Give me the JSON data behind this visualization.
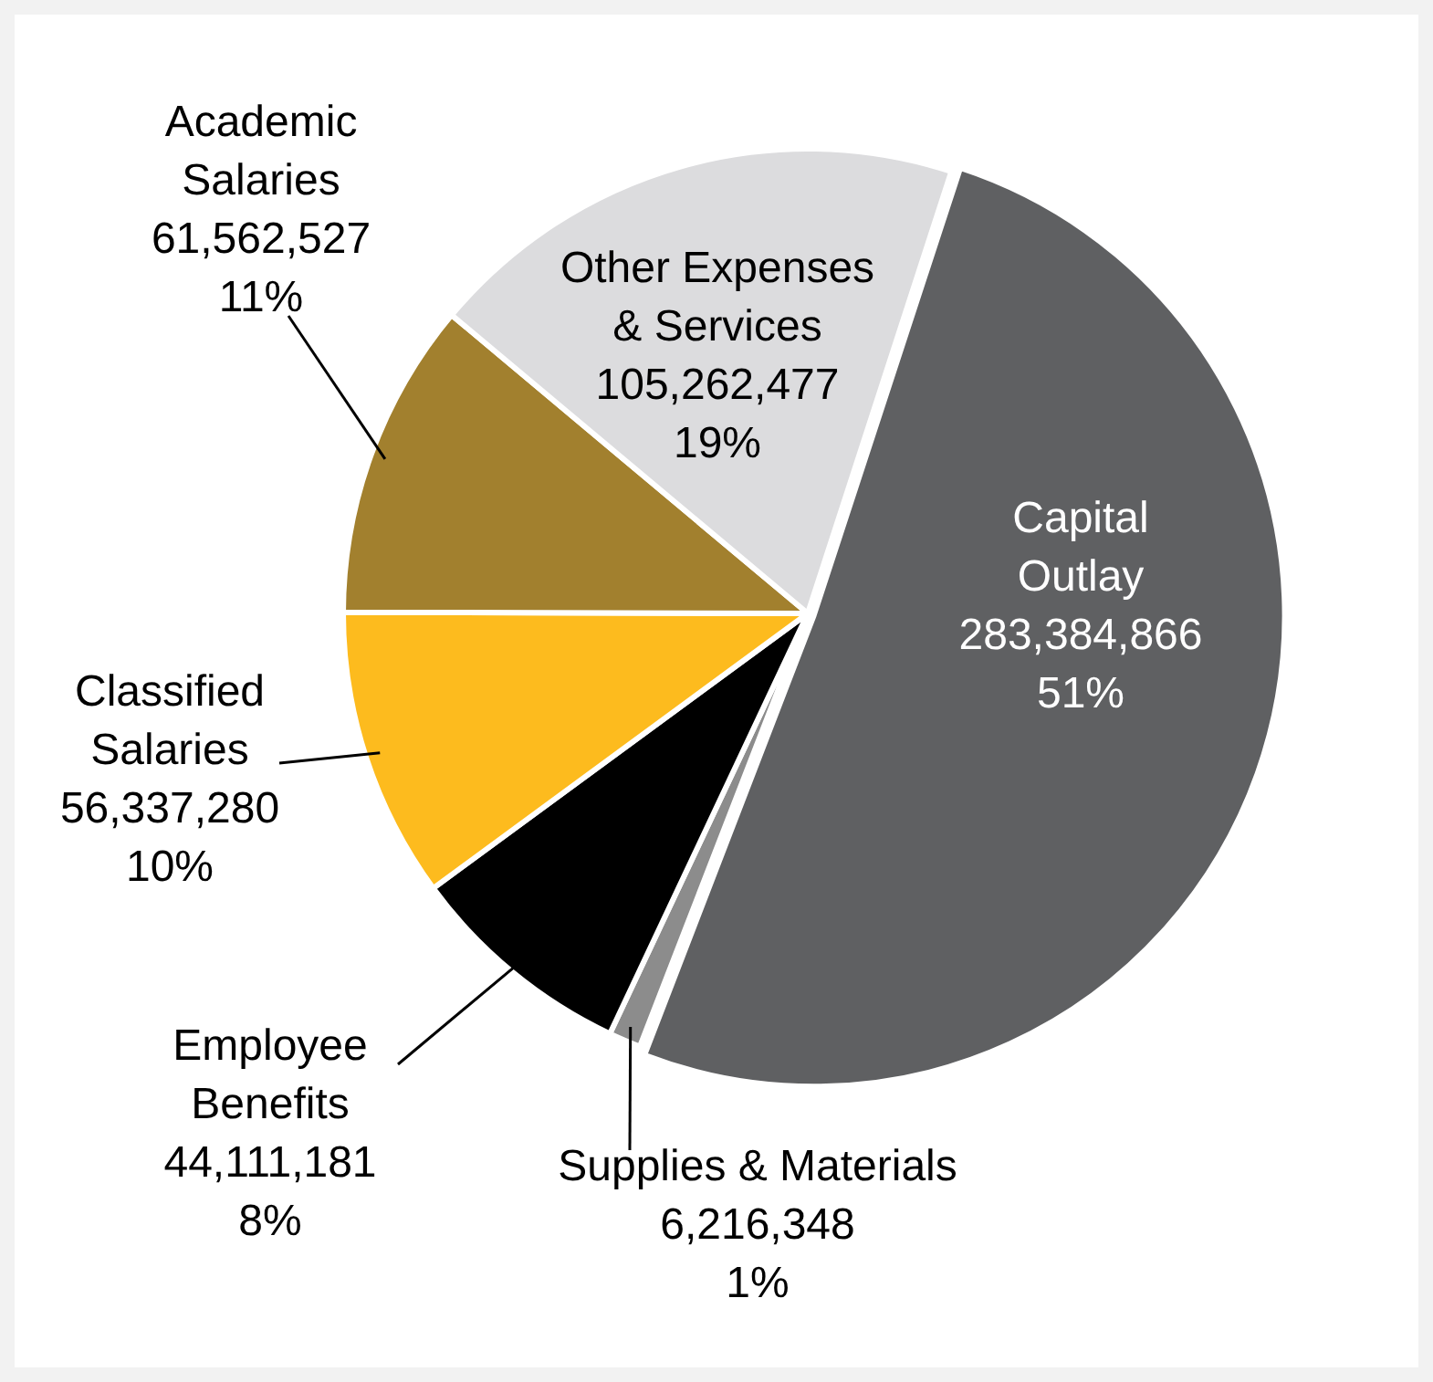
{
  "chart_data": {
    "type": "pie",
    "categories": [
      "Capital Outlay",
      "Supplies & Materials",
      "Employee Benefits",
      "Classified Salaries",
      "Academic Salaries",
      "Other Expenses & Services"
    ],
    "values": [
      283384866,
      6216348,
      44111181,
      56337280,
      61562527,
      105262477
    ],
    "colors": [
      "#5f6062",
      "#8c8c8c",
      "#000000",
      "#fdbb1e",
      "#a2802e",
      "#dcdcde"
    ],
    "value_labels": [
      "283,384,866",
      "6,216,348",
      "44,111,181",
      "56,337,280",
      "61,562,527",
      "105,262,477"
    ],
    "annotations": [
      {
        "text": "51%",
        "x": "Capital Outlay"
      },
      {
        "text": "1%",
        "x": "Supplies & Materials"
      },
      {
        "text": "8%",
        "x": "Employee Benefits"
      },
      {
        "text": "10%",
        "x": "Classified Salaries"
      },
      {
        "text": "11%",
        "x": "Academic Salaries"
      },
      {
        "text": "19%",
        "x": "Other Expenses & Services"
      }
    ],
    "legend": false
  }
}
